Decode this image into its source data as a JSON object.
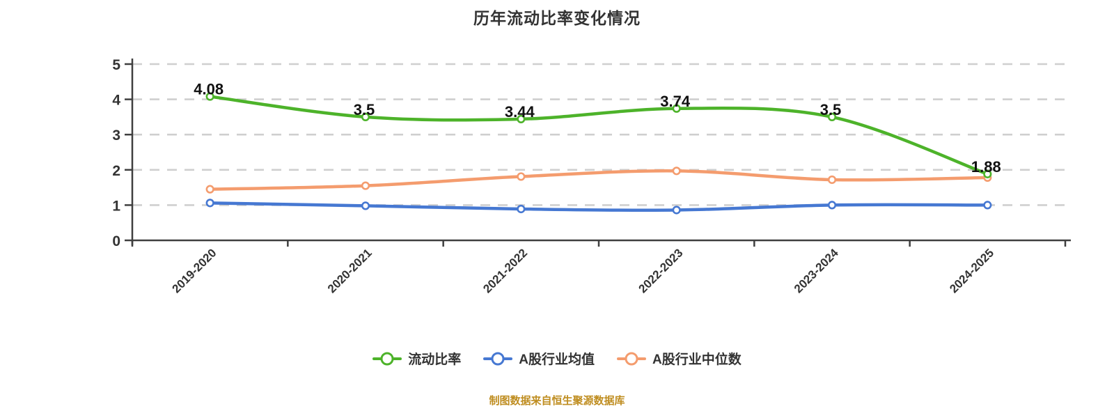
{
  "title": "历年流动比率变化情况",
  "footer_note": "制图数据来自恒生聚源数据库",
  "colors": {
    "current_ratio": "#4db32a",
    "industry_mean": "#4678d2",
    "industry_median": "#f49c6e",
    "grid": "#cfcfcf",
    "axis": "#3f3f3f",
    "text": "#333333",
    "point_label": "#111111",
    "footer": "#bf8d20",
    "background": "#ffffff"
  },
  "chart_data": {
    "type": "line",
    "title": "历年流动比率变化情况",
    "categories": [
      "2019-2020",
      "2020-2021",
      "2021-2022",
      "2022-2023",
      "2023-2024",
      "2024-2025"
    ],
    "series": [
      {
        "name": "流动比率",
        "slug": "current-ratio",
        "color": "#4db32a",
        "values": [
          4.08,
          3.5,
          3.44,
          3.74,
          3.5,
          1.88
        ],
        "point_labels": [
          "4.08",
          "3.5",
          "3.44",
          "3.74",
          "3.5",
          "1.88"
        ]
      },
      {
        "name": "A股行业均值",
        "slug": "a-share-industry-mean",
        "color": "#4678d2",
        "values": [
          1.06,
          0.98,
          0.89,
          0.86,
          1.0,
          1.0
        ]
      },
      {
        "name": "A股行业中位数",
        "slug": "a-share-industry-median",
        "color": "#f49c6e",
        "values": [
          1.45,
          1.55,
          1.81,
          1.97,
          1.72,
          1.78
        ]
      }
    ],
    "xlabel": "",
    "ylabel": "",
    "ylim": [
      0,
      5
    ],
    "y_ticks": [
      "0",
      "1",
      "2",
      "3",
      "4",
      "5"
    ],
    "grid": "horizontal dashed",
    "legend_position": "bottom",
    "x_label_rotation": -45
  }
}
